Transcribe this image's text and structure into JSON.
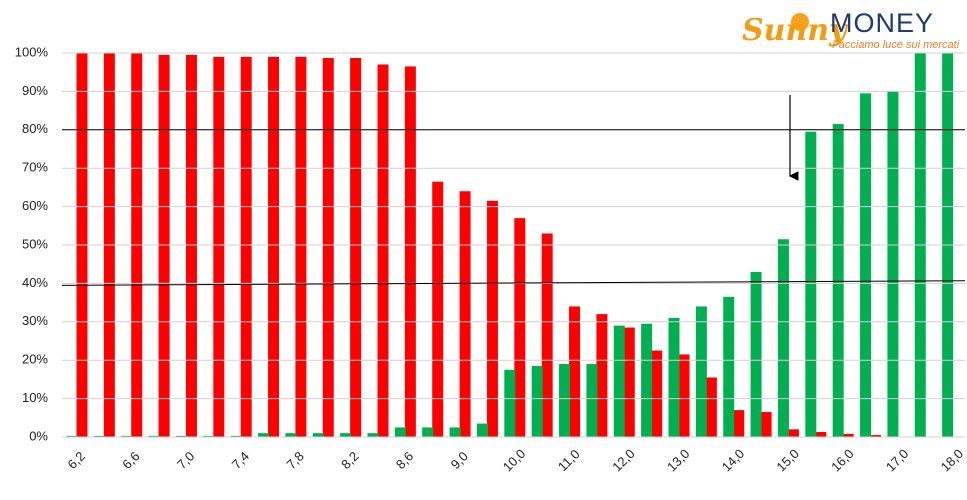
{
  "logo": {
    "brand_1": "Sunny",
    "brand_2": "MONEY",
    "tagline": "Facciamo luce sui mercati"
  },
  "chart_data": {
    "type": "bar",
    "categories": [
      "6,2",
      null,
      "6,6",
      null,
      "7,0",
      null,
      "7,4",
      null,
      "7,8",
      null,
      "8,2",
      null,
      "8,6",
      null,
      "9,0",
      null,
      "10,0",
      null,
      "11,0",
      null,
      "12,0",
      null,
      "13,0",
      null,
      "14,0",
      null,
      "15,0",
      null,
      "16,0",
      null,
      "17,0",
      null,
      "18,0"
    ],
    "series": [
      {
        "color": "#00b050",
        "values": [
          0.3,
          0.3,
          0.3,
          0.3,
          0.3,
          0.3,
          0.3,
          1,
          1,
          1,
          1,
          1,
          2.5,
          2.5,
          2.5,
          3.5,
          17.5,
          18.5,
          19,
          19,
          29,
          29.5,
          31,
          34,
          36.5,
          43,
          51.5,
          79.5,
          81.5,
          89.5,
          90,
          100,
          100
        ]
      },
      {
        "color": "#ff0000",
        "values": [
          100,
          100,
          100,
          99.5,
          99.5,
          99,
          99,
          99,
          99,
          98.7,
          98.7,
          97,
          96.5,
          66.5,
          64,
          61.5,
          57,
          53,
          34,
          32,
          28.5,
          22.5,
          21.5,
          15.5,
          7,
          6.5,
          2,
          1.3,
          0.8,
          0.5,
          0,
          0,
          0
        ]
      }
    ],
    "ylim": [
      0,
      100
    ],
    "yticks": [
      {
        "value": 0,
        "label": "0%"
      },
      {
        "value": 10,
        "label": "10%"
      },
      {
        "value": 20,
        "label": "20%"
      },
      {
        "value": 30,
        "label": "30%"
      },
      {
        "value": 40,
        "label": "40%"
      },
      {
        "value": 50,
        "label": "50%"
      },
      {
        "value": 60,
        "label": "60%"
      },
      {
        "value": 70,
        "label": "70%"
      },
      {
        "value": 80,
        "label": "80%"
      },
      {
        "value": 90,
        "label": "90%"
      },
      {
        "value": 100,
        "label": "100%"
      }
    ],
    "grid": true,
    "reference_lines": [
      {
        "from": 39.5,
        "to": 40.7
      },
      {
        "from": 80,
        "to": 80
      }
    ]
  }
}
